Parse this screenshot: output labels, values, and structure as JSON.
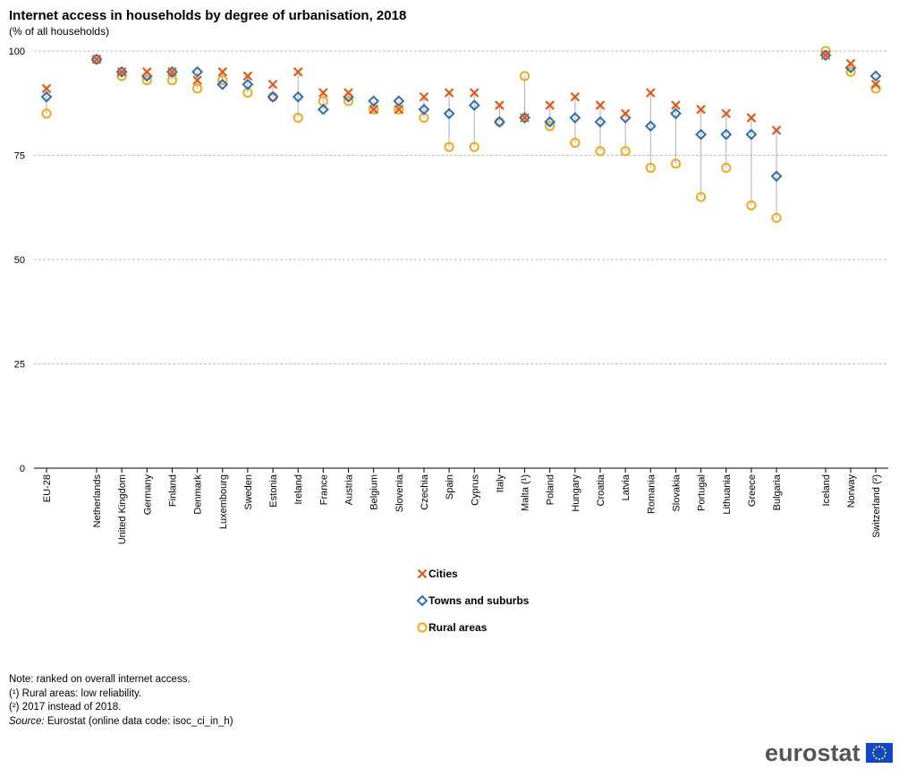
{
  "header": {
    "title": "Internet access in households by degree of urbanisation, 2018",
    "subtitle": "(% of all households)"
  },
  "chart_data": {
    "type": "scatter",
    "ylim": [
      0,
      100
    ],
    "yticks": [
      0,
      25,
      50,
      75,
      100
    ],
    "grid": true,
    "legend_position": "bottom-center",
    "categories": [
      "EU-28",
      "Netherlands",
      "United Kingdom",
      "Germany",
      "Finland",
      "Denmark",
      "Luxembourg",
      "Sweden",
      "Estonia",
      "Ireland",
      "France",
      "Austria",
      "Belgium",
      "Slovenia",
      "Czechia",
      "Spain",
      "Cyprus",
      "Italy",
      "Malta (¹)",
      "Poland",
      "Hungary",
      "Croatia",
      "Latvia",
      "Romania",
      "Slovakia",
      "Portugal",
      "Lithuania",
      "Greece",
      "Bulgaria",
      "Iceland",
      "Norway",
      "Switzerland (²)"
    ],
    "series": [
      {
        "name": "Cities",
        "marker": "cross",
        "color": "#e05a1c",
        "values": [
          91,
          98,
          95,
          95,
          95,
          93,
          95,
          94,
          92,
          95,
          90,
          90,
          86,
          86,
          89,
          90,
          90,
          87,
          84,
          87,
          89,
          87,
          85,
          90,
          87,
          86,
          85,
          84,
          81,
          99,
          97,
          92
        ]
      },
      {
        "name": "Towns and suburbs",
        "marker": "diamond",
        "color": "#2f6ead",
        "values": [
          89,
          98,
          95,
          94,
          95,
          95,
          92,
          92,
          89,
          89,
          86,
          89,
          88,
          88,
          86,
          85,
          87,
          83,
          84,
          83,
          84,
          83,
          84,
          82,
          85,
          80,
          80,
          80,
          70,
          99,
          96,
          94
        ]
      },
      {
        "name": "Rural areas",
        "marker": "circle",
        "color": "#f1a81e",
        "values": [
          85,
          98,
          94,
          93,
          93,
          91,
          93,
          90,
          89,
          84,
          88,
          88,
          86,
          86,
          84,
          77,
          77,
          83,
          94,
          82,
          78,
          76,
          76,
          72,
          73,
          65,
          72,
          63,
          60,
          100,
          95,
          91
        ]
      }
    ]
  },
  "notes": {
    "note": "Note: ranked on overall internet access.",
    "fn1": "(¹) Rural areas: low reliability.",
    "fn2": "(²) 2017 instead of 2018.",
    "source_label": "Source:",
    "source_text": " Eurostat (online data code: isoc_ci_in_h)"
  },
  "logo": {
    "text": "eurostat"
  }
}
